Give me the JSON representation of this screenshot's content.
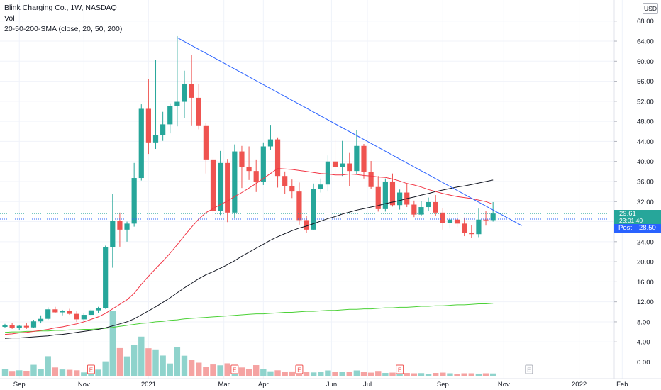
{
  "legend": {
    "symbol": "Blink Charging Co., 1W, NASDAQ",
    "volume": "Vol",
    "sma": "20-50-200-SMA (close, 20, 50, 200)"
  },
  "currency": "USD",
  "colors": {
    "up": "#26a69a",
    "down": "#ef5350",
    "vol_up": "#8fd3cc",
    "vol_down": "#f5a3a2",
    "sma20": "#f23645",
    "sma50": "#131722",
    "sma200": "#4cd137",
    "trendline": "#2962ff",
    "last_price_tag": "#26a69a",
    "post_tag": "#2962ff"
  },
  "last_price": {
    "value": "29.61",
    "countdown": "23:01:40"
  },
  "post_price": {
    "label": "Post",
    "value": "28.50"
  },
  "chart_data": {
    "type": "candlestick",
    "y_axis_ticks": [
      "68.00",
      "64.00",
      "60.00",
      "56.00",
      "52.00",
      "48.00",
      "44.00",
      "40.00",
      "36.00",
      "32.00",
      "28.00",
      "24.00",
      "20.00",
      "16.00",
      "12.00",
      "8.00",
      "4.00",
      "0.00"
    ],
    "x_axis_ticks": [
      "Sep",
      "Nov",
      "2021",
      "Mar",
      "Apr",
      "Jun",
      "Jul",
      "Sep",
      "Nov",
      "2022",
      "Feb"
    ],
    "ylim": [
      0,
      72
    ],
    "ohlc": [
      [
        7.0,
        7.6,
        6.8,
        7.3
      ],
      [
        7.3,
        7.8,
        6.6,
        6.8
      ],
      [
        6.8,
        7.4,
        6.3,
        7.2
      ],
      [
        7.2,
        7.7,
        6.6,
        6.9
      ],
      [
        6.9,
        8.4,
        6.8,
        8.1
      ],
      [
        8.1,
        9.3,
        7.7,
        8.6
      ],
      [
        8.6,
        10.9,
        8.4,
        10.5
      ],
      [
        10.5,
        11.0,
        9.7,
        9.9
      ],
      [
        9.9,
        10.4,
        9.3,
        10.2
      ],
      [
        10.2,
        10.6,
        9.4,
        9.6
      ],
      [
        9.6,
        10.1,
        8.0,
        8.5
      ],
      [
        8.5,
        9.7,
        8.1,
        9.4
      ],
      [
        9.4,
        10.5,
        9.1,
        10.3
      ],
      [
        10.3,
        11.0,
        9.8,
        10.8
      ],
      [
        10.8,
        23.2,
        10.6,
        22.9
      ],
      [
        22.9,
        33.5,
        18.8,
        28.1
      ],
      [
        28.1,
        29.8,
        23.0,
        26.4
      ],
      [
        26.4,
        28.0,
        24.0,
        27.6
      ],
      [
        27.6,
        39.7,
        27.0,
        36.7
      ],
      [
        36.7,
        51.4,
        36.2,
        50.5
      ],
      [
        50.5,
        56.4,
        41.5,
        43.8
      ],
      [
        43.8,
        60.2,
        42.5,
        45.2
      ],
      [
        45.2,
        49.9,
        44.1,
        47.4
      ],
      [
        47.4,
        51.6,
        45.6,
        51.0
      ],
      [
        51.0,
        65.0,
        47.0,
        51.9
      ],
      [
        51.9,
        58.1,
        48.6,
        55.4
      ],
      [
        55.4,
        61.3,
        47.2,
        52.7
      ],
      [
        52.7,
        55.5,
        46.4,
        47.2
      ],
      [
        47.2,
        47.7,
        37.6,
        40.4
      ],
      [
        40.4,
        40.9,
        29.2,
        30.1
      ],
      [
        30.1,
        42.1,
        29.3,
        39.7
      ],
      [
        39.7,
        40.5,
        27.9,
        29.8
      ],
      [
        29.8,
        43.4,
        28.7,
        42.0
      ],
      [
        42.0,
        43.1,
        34.7,
        38.9
      ],
      [
        38.9,
        43.0,
        36.3,
        38.1
      ],
      [
        38.1,
        40.4,
        33.9,
        35.9
      ],
      [
        35.9,
        43.8,
        35.3,
        43.0
      ],
      [
        43.0,
        47.3,
        42.3,
        44.4
      ],
      [
        44.4,
        44.8,
        34.8,
        37.1
      ],
      [
        37.1,
        38.0,
        33.5,
        35.1
      ],
      [
        35.1,
        36.4,
        32.7,
        34.0
      ],
      [
        34.0,
        35.8,
        27.4,
        28.3
      ],
      [
        28.3,
        29.2,
        25.8,
        26.4
      ],
      [
        26.4,
        35.6,
        26.3,
        34.5
      ],
      [
        34.5,
        36.6,
        33.8,
        35.4
      ],
      [
        35.4,
        41.2,
        34.0,
        40.0
      ],
      [
        40.0,
        44.4,
        37.6,
        38.9
      ],
      [
        38.9,
        44.1,
        37.1,
        39.6
      ],
      [
        39.6,
        41.7,
        35.1,
        38.1
      ],
      [
        38.1,
        46.3,
        37.5,
        43.1
      ],
      [
        43.1,
        43.5,
        36.6,
        37.9
      ],
      [
        37.9,
        40.1,
        34.5,
        34.9
      ],
      [
        34.9,
        37.1,
        30.0,
        30.5
      ],
      [
        30.5,
        36.6,
        30.0,
        36.0
      ],
      [
        36.0,
        37.6,
        31.0,
        31.3
      ],
      [
        31.3,
        34.4,
        30.4,
        33.8
      ],
      [
        33.8,
        35.7,
        30.9,
        31.4
      ],
      [
        31.4,
        32.2,
        28.9,
        29.4
      ],
      [
        29.4,
        32.1,
        29.1,
        30.9
      ],
      [
        30.9,
        32.8,
        30.2,
        31.9
      ],
      [
        31.9,
        33.3,
        29.2,
        29.8
      ],
      [
        29.8,
        30.7,
        26.4,
        27.7
      ],
      [
        27.7,
        29.4,
        26.6,
        28.4
      ],
      [
        28.4,
        29.5,
        26.9,
        27.6
      ],
      [
        27.6,
        28.8,
        25.1,
        25.8
      ],
      [
        25.8,
        27.3,
        24.7,
        25.5
      ],
      [
        25.5,
        30.6,
        24.9,
        28.4
      ],
      [
        28.4,
        30.2,
        27.2,
        28.3
      ],
      [
        28.3,
        31.9,
        28.0,
        29.61
      ]
    ],
    "volume": [
      4.0,
      2.9,
      3.3,
      3.0,
      6.6,
      3.9,
      11.8,
      5.0,
      3.8,
      3.6,
      3.3,
      2.0,
      1.9,
      3.7,
      8.7,
      39.0,
      16.7,
      11.7,
      18.5,
      23.6,
      16.6,
      15.9,
      12.2,
      7.4,
      17.4,
      12.1,
      9.8,
      7.9,
      5.5,
      6.8,
      6.3,
      7.5,
      6.2,
      5.0,
      4.0,
      6.4,
      4.2,
      2.7,
      3.3,
      2.4,
      2.6,
      3.9,
      2.2,
      2.0,
      2.3,
      3.2,
      2.2,
      2.2,
      2.3,
      3.2,
      2.2,
      1.9,
      2.9,
      1.7,
      1.9,
      2.5,
      1.7,
      1.5,
      1.6,
      1.2,
      1.7,
      1.9,
      1.5,
      1.2,
      1.5,
      1.5,
      1.3,
      1.5,
      1.4
    ],
    "volume_ylim": [
      0,
      60
    ],
    "sma20": [
      5.5,
      5.6,
      5.8,
      5.9,
      6.1,
      6.3,
      6.5,
      6.8,
      7.0,
      7.3,
      7.6,
      8.0,
      8.5,
      9.0,
      9.7,
      10.6,
      11.5,
      12.4,
      13.7,
      15.5,
      17.1,
      18.6,
      20.1,
      21.7,
      23.4,
      25.2,
      26.9,
      28.5,
      29.8,
      30.6,
      31.4,
      32.1,
      33.0,
      33.8,
      34.7,
      35.6,
      36.6,
      37.6,
      38.6,
      38.5,
      38.4,
      38.2,
      38.0,
      37.8,
      37.6,
      37.5,
      37.3,
      37.3,
      37.5,
      37.4,
      37.2,
      37.1,
      36.9,
      36.8,
      36.5,
      36.1,
      35.6,
      35.3,
      34.9,
      34.4,
      34.0,
      33.6,
      33.3,
      33.0,
      32.8,
      32.6,
      32.3,
      32.0,
      31.5
    ],
    "sma50": [
      4.7,
      4.8,
      4.8,
      4.9,
      5.0,
      5.1,
      5.2,
      5.4,
      5.5,
      5.7,
      5.9,
      6.1,
      6.3,
      6.5,
      6.8,
      7.2,
      7.6,
      8.0,
      8.6,
      9.4,
      10.2,
      11.0,
      11.9,
      12.8,
      13.8,
      14.8,
      15.7,
      16.6,
      17.4,
      18.0,
      18.7,
      19.4,
      20.2,
      21.1,
      21.9,
      22.7,
      23.5,
      24.3,
      25.0,
      25.6,
      26.2,
      26.7,
      27.1,
      27.6,
      28.1,
      28.6,
      29.0,
      29.5,
      29.9,
      30.3,
      30.6,
      30.9,
      31.2,
      31.6,
      31.9,
      32.2,
      32.6,
      32.9,
      33.3,
      33.6,
      34.0,
      34.3,
      34.6,
      34.9,
      35.1,
      35.4,
      35.7,
      36.0,
      36.3
    ],
    "sma200": [
      5.9,
      6.0,
      6.0,
      6.1,
      6.1,
      6.2,
      6.2,
      6.3,
      6.3,
      6.4,
      6.4,
      6.5,
      6.5,
      6.6,
      6.7,
      6.9,
      7.1,
      7.3,
      7.5,
      7.7,
      7.8,
      8.0,
      8.1,
      8.3,
      8.4,
      8.6,
      8.7,
      8.8,
      8.9,
      9.0,
      9.1,
      9.2,
      9.3,
      9.4,
      9.5,
      9.6,
      9.6,
      9.7,
      9.8,
      9.9,
      9.9,
      10.0,
      10.1,
      10.1,
      10.2,
      10.3,
      10.3,
      10.4,
      10.5,
      10.5,
      10.6,
      10.6,
      10.7,
      10.8,
      10.8,
      10.9,
      10.9,
      11.0,
      11.1,
      11.1,
      11.2,
      11.2,
      11.3,
      11.4,
      11.4,
      11.5,
      11.6,
      11.6,
      11.7
    ],
    "trendline": [
      [
        24,
        64.7
      ],
      [
        72,
        27.2
      ]
    ],
    "dividend_marker_label": "E",
    "earnings_marker_bars": [
      12,
      32,
      41,
      55
    ],
    "future_marker_bar": 73
  }
}
